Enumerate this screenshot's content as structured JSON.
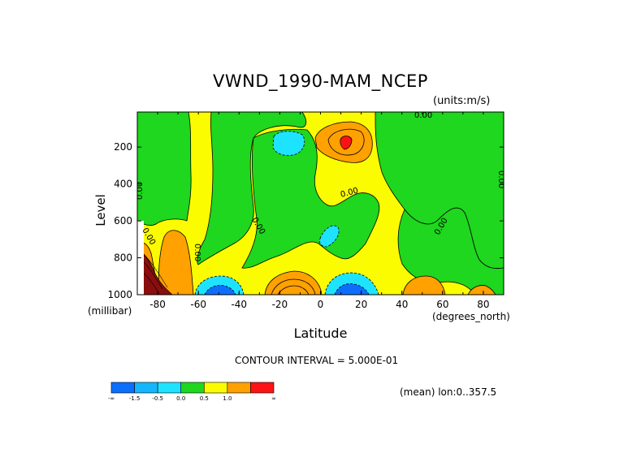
{
  "chart_data": {
    "type": "heatmap",
    "title": "VWND_1990-MAM_NCEP",
    "units_note": "(units:m/s)",
    "xlabel": "Latitude",
    "x_unit_label": "(degrees_north)",
    "ylabel": "Level",
    "y_unit_label": "(millibar)",
    "xlim": [
      -90,
      90
    ],
    "ylim": [
      1000,
      10
    ],
    "x_ticks": [
      -80,
      -60,
      -40,
      -20,
      0,
      20,
      40,
      60,
      80
    ],
    "x_tick_labels": [
      "-80",
      "-60",
      "-40",
      "-20",
      "0",
      "20",
      "40",
      "60",
      "80"
    ],
    "y_ticks": [
      200,
      400,
      600,
      800,
      1000
    ],
    "y_tick_labels": [
      "200",
      "400",
      "600",
      "800",
      "1000"
    ],
    "contour_interval_text": "CONTOUR INTERVAL = 5.000E-01",
    "mean_note": "(mean) lon:0..357.5",
    "colorbar": {
      "colors": [
        "#0d6efc",
        "#15b6fb",
        "#1ee3ff",
        "#1ed71e",
        "#fcfc00",
        "#ffa100",
        "#fc1414"
      ],
      "labels": [
        "-∞",
        "-1.5",
        "-0.5",
        "0.0",
        "0.5",
        "1.0",
        "∞"
      ]
    },
    "contour_labels": [
      "0.00",
      "0.00",
      "0.00",
      "0.00",
      "0.00",
      "0.00",
      "0.00",
      "0.00"
    ],
    "regions": [
      {
        "value_band": "0.0 to 0.5",
        "color": "#fcfc00",
        "note": "background"
      },
      {
        "value_band": "-0.5 to 0.0",
        "color": "#1ed71e",
        "lat": [
          -85,
          -55
        ],
        "lev": [
          10,
          640
        ]
      },
      {
        "value_band": "-0.5 to 0.0",
        "color": "#1ed71e",
        "lat": [
          -40,
          25
        ],
        "lev": [
          10,
          880
        ]
      },
      {
        "value_band": "-0.5 to 0.0",
        "color": "#1ed71e",
        "lat": [
          28,
          90
        ],
        "lev": [
          10,
          960
        ]
      },
      {
        "value_band": "-1.0 to -0.5",
        "color": "#1ee3ff",
        "lat": [
          -18,
          -8
        ],
        "lev": [
          120,
          230
        ]
      },
      {
        "value_band": "-1.0 to -0.5",
        "color": "#1ee3ff",
        "lat": [
          0,
          10
        ],
        "lev": [
          650,
          760
        ]
      },
      {
        "value_band": "0.5 to 1.0",
        "color": "#ffa100",
        "lat": [
          -2,
          20
        ],
        "lev": [
          80,
          260
        ]
      },
      {
        "value_band": "1.0 and above",
        "color": "#fc1414",
        "lat": [
          7,
          14
        ],
        "lev": [
          140,
          210
        ]
      },
      {
        "value_band": "0.5 to 1.5",
        "color": "#ffa100",
        "lat": [
          -30,
          0
        ],
        "lev": [
          860,
          1000
        ]
      },
      {
        "value_band": "0.5 to 1.0",
        "color": "#ffa100",
        "lat": [
          -80,
          -62
        ],
        "lev": [
          640,
          1000
        ]
      },
      {
        "value_band": "0.5 to 1.0",
        "color": "#ffa100",
        "lat": [
          41,
          61
        ],
        "lev": [
          900,
          1000
        ]
      },
      {
        "value_band": "0.5 to 1.0",
        "color": "#ffa100",
        "lat": [
          70,
          88
        ],
        "lev": [
          950,
          1000
        ]
      },
      {
        "value_band": "below -1.5",
        "color": "#0d6efc",
        "lat": [
          -62,
          -48
        ],
        "lev": [
          900,
          1000
        ]
      },
      {
        "value_band": "below -1.5",
        "color": "#0d6efc",
        "lat": [
          4,
          24
        ],
        "lev": [
          910,
          1000
        ]
      },
      {
        "value_band": "strongly positive",
        "color": "#7a1010",
        "lat": [
          -88,
          -76
        ],
        "lev": [
          700,
          1000
        ]
      },
      {
        "value_band": "missing",
        "color": "#ffffff",
        "lat": [
          -90,
          -86
        ],
        "lev": [
          590,
          1000
        ]
      }
    ]
  }
}
